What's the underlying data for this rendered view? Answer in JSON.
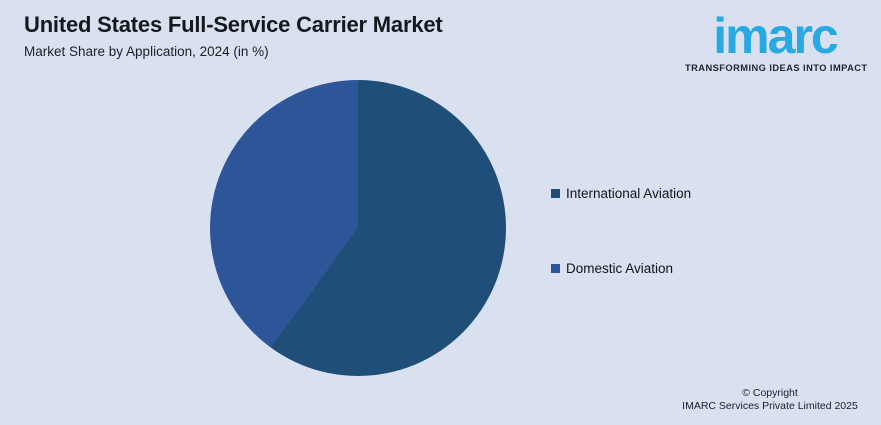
{
  "header": {
    "title": "United States Full-Service Carrier Market",
    "subtitle": "Market Share by Application, 2024 (in %)"
  },
  "logo": {
    "wordmark": "imarc",
    "tagline": "TRANSFORMING IDEAS INTO IMPACT",
    "brand_color": "#29a9e1"
  },
  "chart_data": {
    "type": "pie",
    "title": "United States Full-Service Carrier Market",
    "subtitle": "Market Share by Application, 2024 (in %)",
    "unit": "%",
    "slices": [
      {
        "label": "International Aviation",
        "value": 60,
        "color": "#1f4e79"
      },
      {
        "label": "Domestic Aviation",
        "value": 40,
        "color": "#2e5597"
      }
    ],
    "start_angle_deg": 0,
    "direction": "clockwise",
    "legend_position": "right",
    "data_labels": false,
    "background": "#d9e1f1"
  },
  "footer": {
    "copyright_line1": "© Copyright",
    "copyright_line2": "IMARC Services Private Limited 2025"
  }
}
